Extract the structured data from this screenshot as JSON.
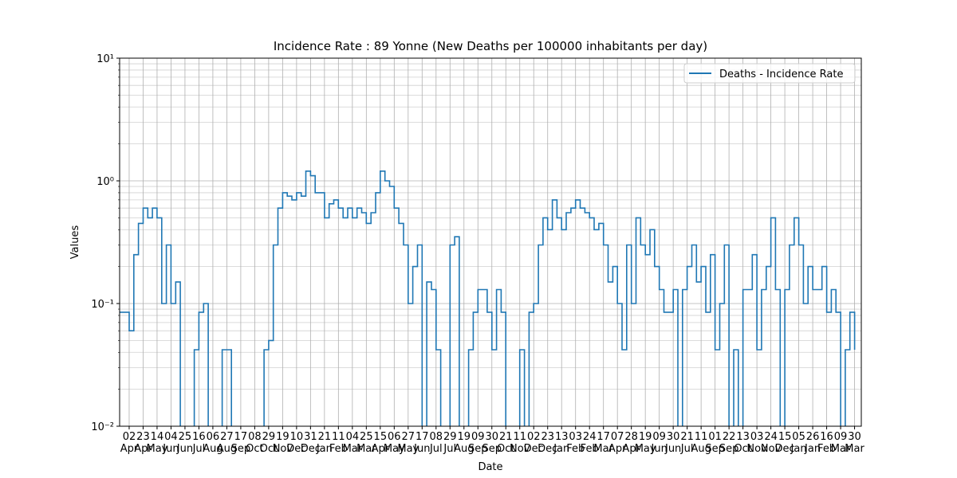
{
  "chart_data": {
    "type": "line",
    "title": "Incidence Rate : 89 Yonne (New Deaths per 100000 inhabitants per day)",
    "xlabel": "Date",
    "ylabel": "Values",
    "log_y": true,
    "grid": true,
    "minor_grid": true,
    "legend": "upper right",
    "x": [
      "19 Mar",
      "26 Mar",
      "02 Apr",
      "09 Apr",
      "16 Apr",
      "23 Apr",
      "30 Apr",
      "07 May",
      "14 May",
      "21 May",
      "28 May",
      "04 Jun",
      "11 Jun",
      "18 Jun",
      "25 Jun",
      "02 Jul",
      "09 Jul",
      "16 Jul",
      "23 Jul",
      "30 Jul",
      "06 Aug",
      "13 Aug",
      "20 Aug",
      "27 Aug",
      "03 Sep",
      "10 Sep",
      "17 Sep",
      "24 Sep",
      "01 Oct",
      "08 Oct",
      "15 Oct",
      "22 Oct",
      "29 Oct",
      "05 Nov",
      "12 Nov",
      "19 Nov",
      "26 Nov",
      "03 Dec",
      "10 Dec",
      "17 Dec",
      "24 Dec",
      "31 Dec",
      "07 Jan",
      "14 Jan",
      "21 Jan",
      "28 Jan",
      "04 Feb",
      "11 Feb",
      "18 Feb",
      "25 Feb",
      "04 Mar",
      "11 Mar",
      "18 Mar",
      "25 Mar",
      "01 Apr",
      "08 Apr",
      "15 Apr",
      "22 Apr",
      "29 Apr",
      "06 May",
      "13 May",
      "20 May",
      "27 May",
      "03 Jun",
      "10 Jun",
      "17 Jun",
      "24 Jun",
      "01 Jul",
      "08 Jul",
      "15 Jul",
      "22 Jul",
      "29 Jul",
      "05 Aug",
      "12 Aug",
      "19 Aug",
      "26 Aug",
      "02 Sep",
      "09 Sep",
      "16 Sep",
      "23 Sep",
      "30 Sep",
      "07 Oct",
      "14 Oct",
      "21 Oct",
      "28 Oct",
      "04 Nov",
      "11 Nov",
      "18 Nov",
      "25 Nov",
      "02 Dec",
      "09 Dec",
      "16 Dec",
      "23 Dec",
      "30 Dec",
      "06 Jan",
      "13 Jan",
      "20 Jan",
      "27 Jan",
      "03 Feb",
      "10 Feb",
      "17 Feb",
      "24 Feb",
      "03 Mar",
      "10 Mar",
      "17 Mar",
      "24 Mar",
      "31 Mar",
      "07 Apr",
      "14 Apr",
      "21 Apr",
      "28 Apr",
      "05 May",
      "12 May",
      "19 May",
      "26 May",
      "02 Jun",
      "09 Jun",
      "16 Jun",
      "23 Jun",
      "30 Jun",
      "07 Jul",
      "14 Jul",
      "21 Jul",
      "28 Jul",
      "04 Aug",
      "11 Aug",
      "18 Aug",
      "25 Aug",
      "01 Sep",
      "08 Sep",
      "15 Sep",
      "22 Sep",
      "29 Sep",
      "06 Oct",
      "13 Oct",
      "20 Oct",
      "27 Oct",
      "03 Nov",
      "10 Nov",
      "17 Nov",
      "24 Nov",
      "01 Dec",
      "08 Dec",
      "15 Dec",
      "22 Dec",
      "29 Dec",
      "05 Jan",
      "12 Jan",
      "19 Jan",
      "26 Jan",
      "02 Feb",
      "09 Feb",
      "16 Feb",
      "23 Feb",
      "02 Mar",
      "09 Mar",
      "16 Mar",
      "23 Mar",
      "30 Mar"
    ],
    "series": [
      {
        "name": "Deaths - Incidence Rate",
        "color": "#1f77b4",
        "values": [
          0.085,
          0.085,
          0.06,
          0.25,
          0.45,
          0.6,
          0.5,
          0.6,
          0.5,
          0.1,
          0.3,
          0.1,
          0.15,
          0,
          0,
          0,
          0.042,
          0.085,
          0.1,
          0,
          0,
          0,
          0.042,
          0.042,
          0,
          0,
          0,
          0,
          0,
          0,
          0,
          0.042,
          0.05,
          0.3,
          0.6,
          0.8,
          0.75,
          0.7,
          0.8,
          0.75,
          1.2,
          1.1,
          0.8,
          0.8,
          0.5,
          0.65,
          0.7,
          0.6,
          0.5,
          0.6,
          0.5,
          0.6,
          0.55,
          0.45,
          0.55,
          0.8,
          1.2,
          1.0,
          0.9,
          0.6,
          0.45,
          0.3,
          0.1,
          0.2,
          0.3,
          0,
          0.15,
          0.13,
          0.042,
          0,
          0,
          0.3,
          0.35,
          0,
          0,
          0.042,
          0.085,
          0.13,
          0.13,
          0.085,
          0.042,
          0.13,
          0.085,
          0,
          0,
          0,
          0.042,
          0,
          0.085,
          0.1,
          0.3,
          0.5,
          0.4,
          0.7,
          0.5,
          0.4,
          0.55,
          0.6,
          0.7,
          0.6,
          0.55,
          0.5,
          0.4,
          0.45,
          0.3,
          0.15,
          0.2,
          0.1,
          0.042,
          0.3,
          0.1,
          0.5,
          0.3,
          0.25,
          0.4,
          0.2,
          0.13,
          0.085,
          0.085,
          0.13,
          0,
          0.13,
          0.2,
          0.3,
          0.15,
          0.2,
          0.085,
          0.25,
          0.042,
          0.1,
          0.3,
          0,
          0.042,
          0,
          0.13,
          0.13,
          0.25,
          0.042,
          0.13,
          0.2,
          0.5,
          0.13,
          0,
          0.13,
          0.3,
          0.5,
          0.3,
          0.1,
          0.2,
          0.13,
          0.13,
          0.2,
          0.085,
          0.13,
          0.085,
          0,
          0.042,
          0.085,
          0.042
        ]
      }
    ],
    "xticks": [
      "02 Apr",
      "23 Apr",
      "14 May",
      "04 Jun",
      "25 Jun",
      "16 Jul",
      "06 Aug",
      "27 Aug",
      "17 Sep",
      "08 Oct",
      "29 Oct",
      "19 Nov",
      "10 Dec",
      "31 Dec",
      "21 Jan",
      "11 Feb",
      "04 Mar",
      "25 Mar",
      "15 Apr",
      "06 May",
      "27 May",
      "17 Jun",
      "08 Jul",
      "29 Jul",
      "19 Aug",
      "09 Sep",
      "30 Sep",
      "21 Oct",
      "11 Nov",
      "02 Dec",
      "23 Dec",
      "13 Jan",
      "03 Feb",
      "24 Feb",
      "17 Mar",
      "07 Apr",
      "28 Apr",
      "19 May",
      "09 Jun",
      "30 Jun",
      "21 Jul",
      "11 Aug",
      "01 Sep",
      "22 Sep",
      "13 Oct",
      "03 Nov",
      "24 Nov",
      "15 Dec",
      "05 Jan",
      "26 Jan",
      "16 Feb",
      "09 Mar",
      "30 Mar"
    ],
    "ylim": [
      0.01,
      10
    ],
    "yticks": [
      {
        "value": 0.01,
        "label": "10⁻²"
      },
      {
        "value": 0.1,
        "label": "10⁻¹"
      },
      {
        "value": 1,
        "label": "10⁰"
      },
      {
        "value": 10,
        "label": "10¹"
      }
    ]
  }
}
